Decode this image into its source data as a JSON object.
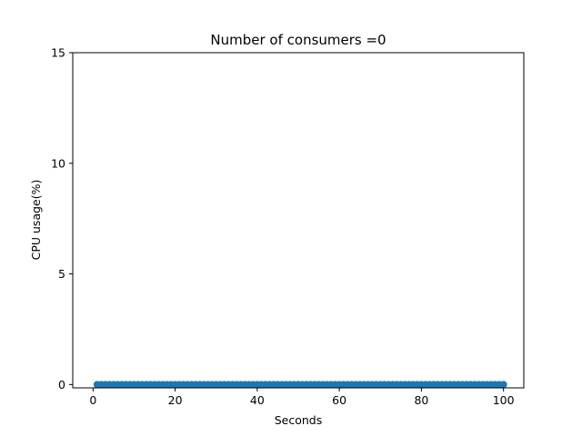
{
  "chart_data": {
    "type": "scatter",
    "title": "Number of consumers =0",
    "xlabel": "Seconds",
    "ylabel": "CPU usage(%)",
    "xlim": [
      -4.95,
      104.95
    ],
    "ylim": [
      -0.15,
      15
    ],
    "xticks": [
      0,
      20,
      40,
      60,
      80,
      100
    ],
    "yticks": [
      0,
      5,
      10,
      15
    ],
    "grid": false,
    "series": [
      {
        "color": "#1f77b4",
        "x_start": 1,
        "x_end": 100,
        "x_step": 1,
        "y_constant": 0
      }
    ]
  }
}
